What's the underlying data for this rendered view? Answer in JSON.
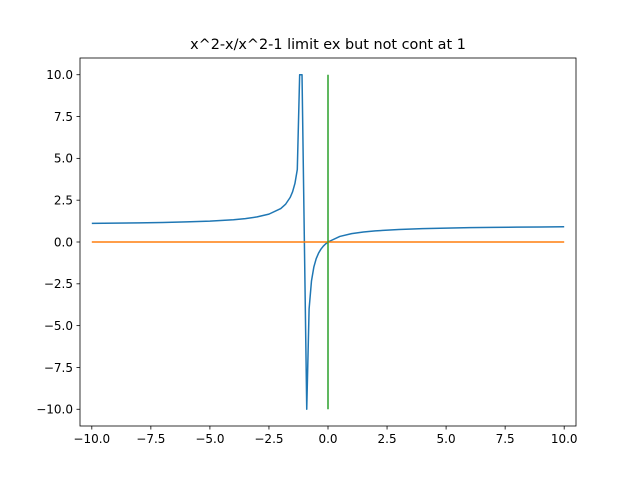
{
  "chart_data": {
    "type": "line",
    "title": "x^2-x/x^2-1 limit ex but not cont at 1",
    "xlabel": "",
    "ylabel": "",
    "xlim": [
      -10.5,
      10.5
    ],
    "ylim": [
      -11.0,
      11.0
    ],
    "grid": false,
    "legend": "none",
    "xticks": [
      -10.0,
      -7.5,
      -5.0,
      -2.5,
      0.0,
      2.5,
      5.0,
      7.5,
      10.0
    ],
    "xtick_labels": [
      "−10.0",
      "−7.5",
      "−5.0",
      "−2.5",
      "0.0",
      "2.5",
      "5.0",
      "7.5",
      "10.0"
    ],
    "yticks": [
      -10.0,
      -7.5,
      -5.0,
      -2.5,
      0.0,
      2.5,
      5.0,
      7.5,
      10.0
    ],
    "ytick_labels": [
      "−10.0",
      "−7.5",
      "−5.0",
      "−2.5",
      "0.0",
      "2.5",
      "5.0",
      "7.5",
      "10.0"
    ],
    "series": [
      {
        "color": "#1f77b4",
        "x": [
          -10.0,
          -9.0,
          -8.0,
          -7.0,
          -6.0,
          -5.0,
          -4.0,
          -3.5,
          -3.0,
          -2.5,
          -2.0,
          -1.8,
          -1.6,
          -1.5,
          -1.4,
          -1.3,
          -1.2,
          -1.1,
          -0.9,
          -0.8,
          -0.7,
          -0.6,
          -0.5,
          -0.4,
          -0.3,
          -0.2,
          -0.1,
          0.0,
          0.5,
          1.0,
          1.5,
          2.0,
          3.0,
          4.0,
          5.0,
          6.0,
          7.0,
          8.0,
          9.0,
          10.0
        ],
        "y": [
          1.111,
          1.125,
          1.143,
          1.167,
          1.2,
          1.25,
          1.333,
          1.4,
          1.5,
          1.667,
          2.0,
          2.25,
          2.667,
          3.0,
          3.5,
          4.333,
          10.0,
          10.0,
          -10.0,
          -4.0,
          -2.333,
          -1.5,
          -1.0,
          -0.667,
          -0.429,
          -0.25,
          -0.111,
          0.0,
          0.333,
          0.5,
          0.6,
          0.667,
          0.75,
          0.8,
          0.833,
          0.857,
          0.875,
          0.889,
          0.9,
          0.909
        ]
      },
      {
        "color": "#ff7f0e",
        "x": [
          -10.0,
          10.0
        ],
        "y": [
          0.0,
          0.0
        ]
      },
      {
        "color": "#2ca02c",
        "x": [
          0.0,
          0.0
        ],
        "y": [
          -10.0,
          10.0
        ]
      }
    ]
  }
}
